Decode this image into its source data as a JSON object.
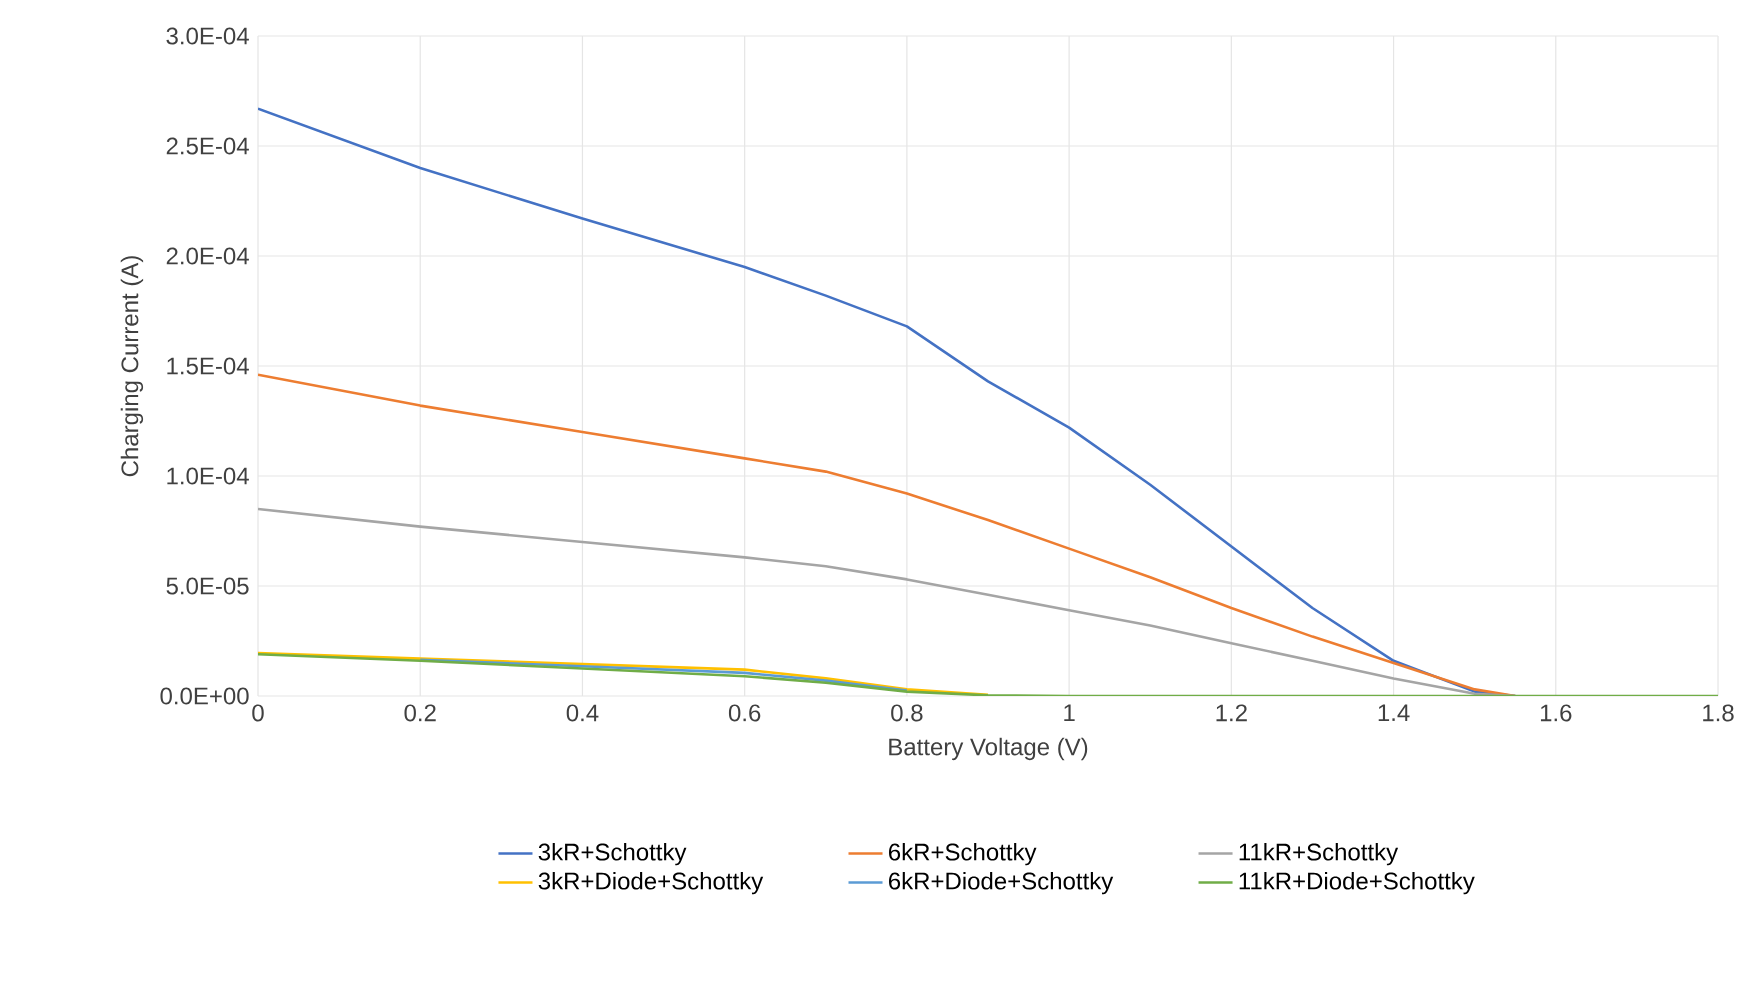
{
  "chart_data": {
    "type": "line",
    "xlabel": "Battery Voltage (V)",
    "ylabel": "Charging Current (A)",
    "x": [
      0,
      0.2,
      0.4,
      0.6,
      0.7,
      0.8,
      0.9,
      1.0,
      1.1,
      1.2,
      1.3,
      1.4,
      1.5,
      1.55,
      1.6,
      1.8
    ],
    "series": [
      {
        "name": "3kR+Schottky",
        "color": "#4472c4",
        "values": [
          0.000267,
          0.00024,
          0.000217,
          0.000195,
          0.000182,
          0.000168,
          0.000143,
          0.000122,
          9.6e-05,
          6.8e-05,
          4e-05,
          1.6e-05,
          2e-06,
          0,
          null,
          null
        ]
      },
      {
        "name": "6kR+Schottky",
        "color": "#ed7d31",
        "values": [
          0.000146,
          0.000132,
          0.00012,
          0.000108,
          0.000102,
          9.2e-05,
          8e-05,
          6.7e-05,
          5.4e-05,
          4e-05,
          2.7e-05,
          1.5e-05,
          3e-06,
          0,
          null,
          null
        ]
      },
      {
        "name": "11kR+Schottky",
        "color": "#a5a5a5",
        "values": [
          8.5e-05,
          7.7e-05,
          7e-05,
          6.3e-05,
          5.9e-05,
          5.3e-05,
          4.6e-05,
          3.9e-05,
          3.2e-05,
          2.4e-05,
          1.6e-05,
          8e-06,
          1e-06,
          0,
          null,
          null
        ]
      },
      {
        "name": "3kR+Diode+Schottky",
        "color": "#ffc000",
        "values": [
          1.95e-05,
          1.7e-05,
          1.45e-05,
          1.2e-05,
          8e-06,
          3e-06,
          5e-07,
          null,
          null,
          null,
          null,
          null,
          null,
          null,
          null,
          null
        ]
      },
      {
        "name": "6kR+Diode+Schottky",
        "color": "#5b9bd5",
        "values": [
          null,
          1.65e-05,
          1.35e-05,
          1.05e-05,
          7e-06,
          2.5e-06,
          null,
          null,
          null,
          null,
          null,
          null,
          null,
          null,
          null,
          null
        ]
      },
      {
        "name": "11kR+Diode+Schottky",
        "color": "#70ad47",
        "values": [
          1.9e-05,
          1.6e-05,
          1.25e-05,
          9e-06,
          6e-06,
          2e-06,
          3e-07,
          0,
          0,
          0,
          0,
          0,
          0,
          0,
          0,
          0
        ]
      }
    ],
    "xlim": [
      0,
      1.8
    ],
    "xticks": [
      0,
      0.2,
      0.4,
      0.6,
      0.8,
      1,
      1.2,
      1.4,
      1.6,
      1.8
    ],
    "ylim": [
      0,
      0.0003
    ],
    "yticks": [
      {
        "value": 0,
        "label": "0.0E+00"
      },
      {
        "value": 5e-05,
        "label": "5.0E-05"
      },
      {
        "value": 0.0001,
        "label": "1.0E-04"
      },
      {
        "value": 0.00015,
        "label": "1.5E-04"
      },
      {
        "value": 0.0002,
        "label": "2.0E-04"
      },
      {
        "value": 0.00025,
        "label": "2.5E-04"
      },
      {
        "value": 0.0003,
        "label": "3.0E-04"
      }
    ],
    "grid": true,
    "legend": "bottom"
  }
}
